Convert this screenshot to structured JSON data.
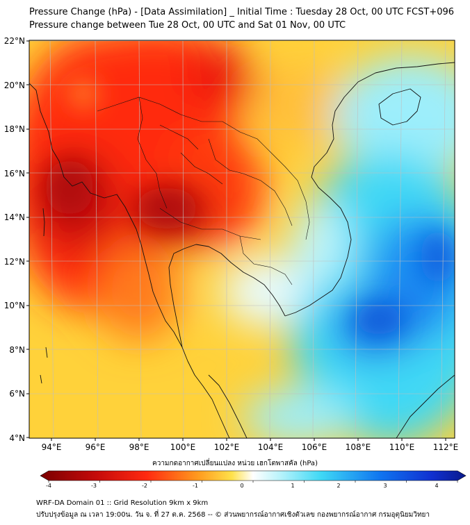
{
  "title_line1": "Pressure Change (hPa) - [Data Assimilation] _ Initial Time : Tuesday 28 Oct, 00 UTC FCST+096",
  "title_line2": "Pressure change between Tue 28 Oct, 00 UTC and Sat 01 Nov, 00 UTC",
  "lat_labels": [
    "22°N",
    "20°N",
    "18°N",
    "16°N",
    "14°N",
    "12°N",
    "10°N",
    "8°N",
    "6°N",
    "4°N"
  ],
  "lon_labels": [
    "94°E",
    "96°E",
    "98°E",
    "100°E",
    "102°E",
    "104°E",
    "106°E",
    "108°E",
    "110°E",
    "112°E"
  ],
  "colorbar": {
    "title": "ความกดอากาศเปลี่ยนแปลง หน่วย เฮกโตพาสคัล (hPa)",
    "ticks": [
      "-4",
      "-3",
      "-2",
      "-1",
      "0",
      "1",
      "2",
      "3",
      "4"
    ],
    "range": [
      -4,
      4
    ]
  },
  "footer_line1": "WRF-DA Domain 01 :: Grid Resolution 9km x 9km",
  "footer_line2": "ปรับปรุงข้อมูล ณ เวลา 19:00น. วัน จ. ที่ 27 ต.ค. 2568 -- © ส่วนพยากรณ์อากาศเชิงตัวเลข กองพยากรณ์อากาศ กรมอุตุนิยมวิทยา",
  "colors": {
    "strong_fall": "#7a0000",
    "fall": "#e31a1c",
    "slight_fall": "#fecb2b",
    "neutral": "#ffffff",
    "slight_rise": "#3fd8f5",
    "rise": "#0f74f0",
    "strong_rise": "#0a1a8c"
  }
}
